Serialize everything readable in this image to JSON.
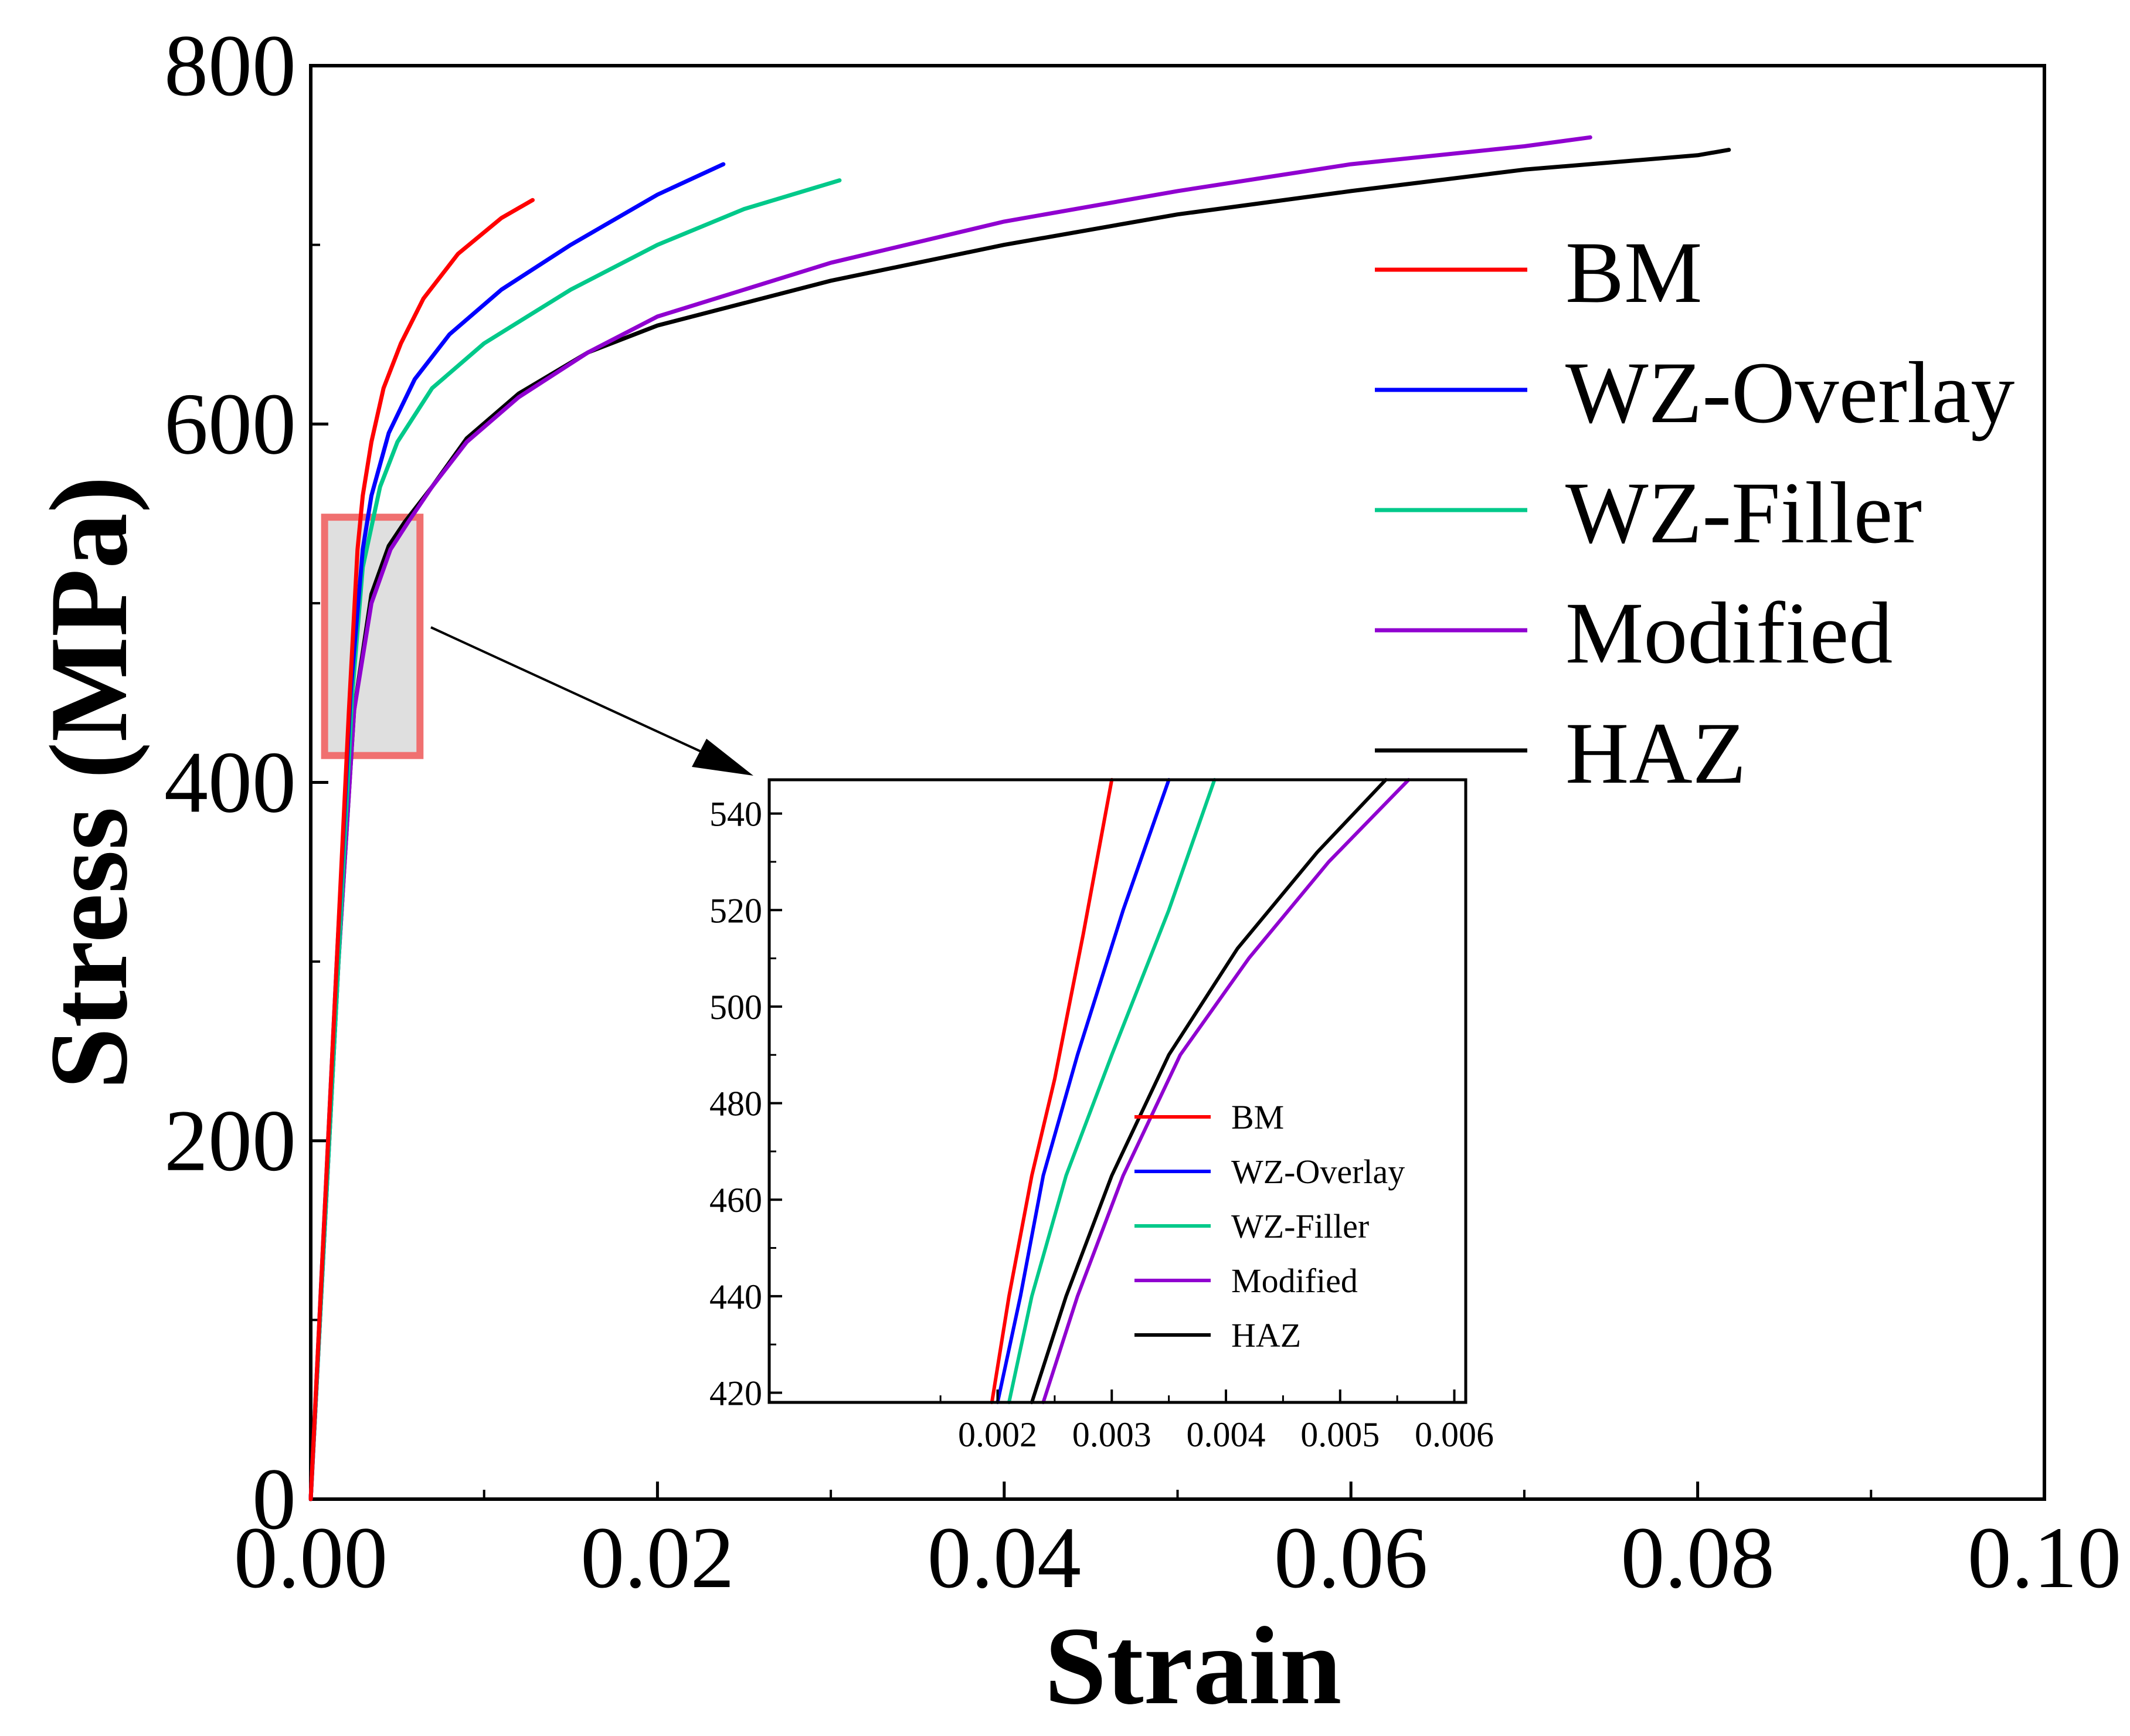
{
  "chart_data": {
    "type": "line",
    "xlabel": "Strain",
    "ylabel": "Stress (MPa)",
    "xlim": [
      0,
      0.1
    ],
    "ylim": [
      0,
      800
    ],
    "xticks": [
      0,
      0.02,
      0.04,
      0.06,
      0.08,
      0.1
    ],
    "xtick_labels": [
      "0.00",
      "0.02",
      "0.04",
      "0.06",
      "0.08",
      "0.10"
    ],
    "xminor": [
      0.01,
      0.03,
      0.05,
      0.07,
      0.09
    ],
    "yticks": [
      0,
      200,
      400,
      600,
      800
    ],
    "ytick_labels": [
      "0",
      "200",
      "400",
      "600",
      "800"
    ],
    "yminor": [
      100,
      300,
      500,
      700
    ],
    "legend": [
      "BM",
      "WZ-Overlay",
      "WZ-Filler",
      "Modified",
      "HAZ"
    ],
    "colors": {
      "BM": "#ff0000",
      "WZ-Overlay": "#0000ff",
      "WZ-Filler": "#00c98a",
      "Modified": "#9000d0",
      "HAZ": "#000000",
      "highlight_fill": "#d9d9d9",
      "highlight_stroke": "#f07070"
    },
    "series": [
      {
        "name": "BM",
        "x": [
          0,
          0.0015,
          0.0022,
          0.0027,
          0.003,
          0.0035,
          0.0042,
          0.0052,
          0.0065,
          0.0085,
          0.011,
          0.0128
        ],
        "y": [
          0,
          300,
          440,
          530,
          560,
          590,
          620,
          645,
          670,
          695,
          715,
          725
        ]
      },
      {
        "name": "WZ-Overlay",
        "x": [
          0,
          0.0015,
          0.0023,
          0.003,
          0.0035,
          0.0045,
          0.006,
          0.008,
          0.011,
          0.015,
          0.02,
          0.0238
        ],
        "y": [
          0,
          300,
          450,
          530,
          560,
          595,
          625,
          650,
          675,
          700,
          728,
          745
        ]
      },
      {
        "name": "WZ-Filler",
        "x": [
          0,
          0.0016,
          0.0024,
          0.003,
          0.004,
          0.005,
          0.007,
          0.01,
          0.015,
          0.02,
          0.025,
          0.0305
        ],
        "y": [
          0,
          300,
          450,
          520,
          565,
          590,
          620,
          645,
          675,
          700,
          720,
          736
        ]
      },
      {
        "name": "Modified",
        "x": [
          0,
          0.0016,
          0.0025,
          0.0035,
          0.0046,
          0.0056,
          0.007,
          0.009,
          0.012,
          0.016,
          0.02,
          0.03,
          0.04,
          0.05,
          0.06,
          0.07,
          0.0738
        ],
        "y": [
          0,
          300,
          440,
          500,
          530,
          545,
          565,
          590,
          615,
          640,
          660,
          690,
          713,
          730,
          745,
          755,
          760
        ]
      },
      {
        "name": "HAZ",
        "x": [
          0,
          0.0016,
          0.0025,
          0.0035,
          0.0045,
          0.0054,
          0.007,
          0.009,
          0.012,
          0.016,
          0.02,
          0.03,
          0.04,
          0.05,
          0.06,
          0.07,
          0.08,
          0.0818
        ],
        "y": [
          0,
          300,
          440,
          505,
          532,
          545,
          565,
          592,
          617,
          640,
          655,
          680,
          700,
          717,
          730,
          742,
          750,
          753
        ]
      }
    ],
    "highlight_box": {
      "x": [
        0.0008,
        0.0063
      ],
      "y": [
        415,
        548
      ]
    },
    "inset": {
      "xlim": [
        0,
        0.0061
      ],
      "ylim": [
        418,
        547
      ],
      "xticks": [
        0.002,
        0.003,
        0.004,
        0.005,
        0.006
      ],
      "xtick_labels": [
        "0.002",
        "0.003",
        "0.004",
        "0.005",
        "0.006"
      ],
      "yticks": [
        420,
        440,
        460,
        480,
        500,
        520,
        540
      ],
      "ytick_labels": [
        "420",
        "440",
        "460",
        "480",
        "500",
        "520",
        "540"
      ],
      "legend": [
        "BM",
        "WZ-Overlay",
        "WZ-Filler",
        "Modified",
        "HAZ"
      ],
      "series": [
        {
          "name": "BM",
          "x": [
            0.00195,
            0.0021,
            0.0023,
            0.0025,
            0.00275,
            0.003
          ],
          "y": [
            418,
            440,
            465,
            485,
            515,
            547
          ]
        },
        {
          "name": "WZ-Overlay",
          "x": [
            0.002,
            0.0022,
            0.0024,
            0.0027,
            0.0031,
            0.0035
          ],
          "y": [
            418,
            440,
            465,
            490,
            520,
            547
          ]
        },
        {
          "name": "WZ-Filler",
          "x": [
            0.0021,
            0.0023,
            0.0026,
            0.003,
            0.0035,
            0.0039
          ],
          "y": [
            418,
            440,
            465,
            490,
            520,
            547
          ]
        },
        {
          "name": "Modified",
          "x": [
            0.0024,
            0.0027,
            0.0031,
            0.0036,
            0.0042,
            0.0049,
            0.0056
          ],
          "y": [
            418,
            440,
            465,
            490,
            510,
            530,
            547
          ]
        },
        {
          "name": "HAZ",
          "x": [
            0.0023,
            0.0026,
            0.003,
            0.0035,
            0.0041,
            0.0048,
            0.0054
          ],
          "y": [
            418,
            440,
            465,
            490,
            512,
            532,
            547
          ]
        }
      ]
    }
  }
}
